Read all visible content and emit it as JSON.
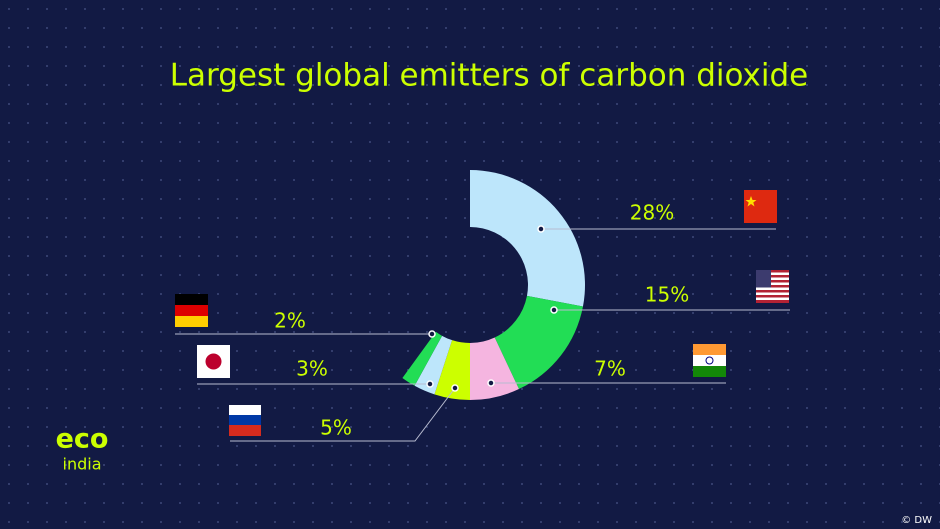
{
  "chart_data": {
    "type": "donut",
    "title": "Largest global emitters of carbon dioxide",
    "values": [
      28,
      15,
      7,
      5,
      3,
      2
    ],
    "value_labels": [
      "28%",
      "15%",
      "7%",
      "5%",
      "3%",
      "2%"
    ],
    "colors": [
      "#bde6fb",
      "#22dd55",
      "#f5b5e0",
      "#ccff00",
      "#bde6fb",
      "#22dd55"
    ]
  },
  "logo": {
    "line1": "eco",
    "line2": "india"
  },
  "credit": "© DW"
}
